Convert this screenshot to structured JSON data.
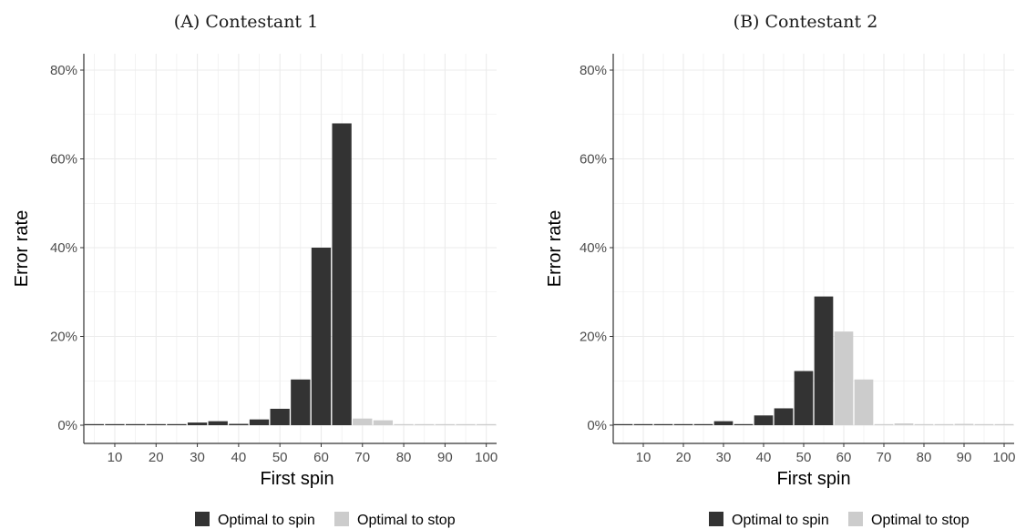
{
  "colors": {
    "spin": "#333333",
    "stop": "#cccccc",
    "grid": "#ebebeb",
    "axis": "#333333"
  },
  "chart_data": [
    {
      "type": "bar",
      "title": "(A) Contestant 1",
      "xlabel": "First spin",
      "ylabel": "Error rate",
      "xlim": [
        2.5,
        102.5
      ],
      "ylim": [
        0,
        80
      ],
      "x_ticks": [
        10,
        20,
        30,
        40,
        50,
        60,
        70,
        80,
        90,
        100
      ],
      "x_tick_labels": [
        "10",
        "20",
        "30",
        "40",
        "50",
        "60",
        "70",
        "80",
        "90",
        "100"
      ],
      "y_ticks": [
        0,
        20,
        40,
        60,
        80
      ],
      "y_tick_labels": [
        "0%",
        "20%",
        "40%",
        "60%",
        "80%"
      ],
      "grid": true,
      "legend_position": "bottom",
      "legend": [
        {
          "label": "Optimal to spin",
          "series": "spin"
        },
        {
          "label": "Optimal to stop",
          "series": "stop"
        }
      ],
      "x": [
        5,
        10,
        15,
        20,
        25,
        30,
        35,
        40,
        45,
        50,
        55,
        60,
        65,
        70,
        75,
        80,
        85,
        90,
        95,
        100
      ],
      "values": [
        0,
        0,
        0,
        0,
        0,
        0.6,
        0.9,
        0.3,
        1.3,
        3.7,
        10.3,
        40.0,
        68.0,
        1.5,
        1.1,
        0.2,
        0.2,
        0,
        0,
        0
      ],
      "groups": [
        "spin",
        "spin",
        "spin",
        "spin",
        "spin",
        "spin",
        "spin",
        "spin",
        "spin",
        "spin",
        "spin",
        "spin",
        "spin",
        "stop",
        "stop",
        "stop",
        "stop",
        "stop",
        "stop",
        "stop"
      ]
    },
    {
      "type": "bar",
      "title": "(B) Contestant 2",
      "xlabel": "First spin",
      "ylabel": "Error rate",
      "xlim": [
        2.5,
        102.5
      ],
      "ylim": [
        0,
        80
      ],
      "x_ticks": [
        10,
        20,
        30,
        40,
        50,
        60,
        70,
        80,
        90,
        100
      ],
      "x_tick_labels": [
        "10",
        "20",
        "30",
        "40",
        "50",
        "60",
        "70",
        "80",
        "90",
        "100"
      ],
      "y_ticks": [
        0,
        20,
        40,
        60,
        80
      ],
      "y_tick_labels": [
        "0%",
        "20%",
        "40%",
        "60%",
        "80%"
      ],
      "grid": true,
      "legend_position": "bottom",
      "legend": [
        {
          "label": "Optimal to spin",
          "series": "spin"
        },
        {
          "label": "Optimal to stop",
          "series": "stop"
        }
      ],
      "x": [
        5,
        10,
        15,
        20,
        25,
        30,
        35,
        40,
        45,
        50,
        55,
        60,
        65,
        70,
        75,
        80,
        85,
        90,
        95,
        100
      ],
      "values": [
        0,
        0,
        0,
        0,
        0,
        0.9,
        0.1,
        2.2,
        3.8,
        12.2,
        29.0,
        21.1,
        10.3,
        0.1,
        0.4,
        0.2,
        0.1,
        0.3,
        0.1,
        0
      ],
      "groups": [
        "spin",
        "spin",
        "spin",
        "spin",
        "spin",
        "spin",
        "spin",
        "spin",
        "spin",
        "spin",
        "spin",
        "stop",
        "stop",
        "stop",
        "stop",
        "stop",
        "stop",
        "stop",
        "stop",
        "stop"
      ]
    }
  ]
}
